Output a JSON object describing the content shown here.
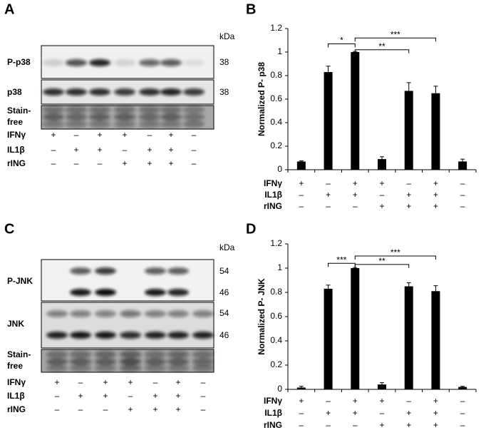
{
  "panels": [
    "A",
    "B",
    "C",
    "D"
  ],
  "conditions": {
    "names": [
      "IFNγ",
      "IL1β",
      "rING"
    ],
    "signs": [
      [
        "+",
        "–",
        "+",
        "+",
        "–",
        "+",
        "–"
      ],
      [
        "–",
        "+",
        "+",
        "–",
        "+",
        "+",
        "–"
      ],
      [
        "–",
        "–",
        "–",
        "+",
        "+",
        "+",
        "–"
      ]
    ]
  },
  "blots": [
    {
      "kda": "kDa",
      "rows": [
        {
          "label": [
            "P-p38"
          ],
          "sizes": [
            "38"
          ]
        },
        {
          "label": [
            "p38"
          ],
          "sizes": [
            "38"
          ]
        },
        {
          "label": [
            "Stain-",
            "free"
          ],
          "sizes": []
        }
      ]
    },
    {
      "kda": "kDa",
      "rows": [
        {
          "label": [
            "P-JNK"
          ],
          "sizes": [
            "54",
            "46"
          ]
        },
        {
          "label": [
            "JNK"
          ],
          "sizes": [
            "54",
            "46"
          ]
        },
        {
          "label": [
            "Stain-",
            "free"
          ],
          "sizes": []
        }
      ]
    }
  ],
  "chart_data": [
    {
      "type": "bar",
      "y_label": "Normalized P- p38",
      "values": [
        0.07,
        0.83,
        1.0,
        0.09,
        0.67,
        0.65,
        0.07
      ],
      "errors": [
        0.005,
        0.05,
        0.005,
        0.02,
        0.07,
        0.06,
        0.02
      ],
      "color": "#000000",
      "ylim": [
        0,
        1.2
      ],
      "yticks": [
        0,
        0.2,
        0.4,
        0.6,
        0.8,
        1,
        1.2
      ],
      "annotations": [
        {
          "text": "*",
          "from": 1,
          "to": 2,
          "y": 1.07
        },
        {
          "text": "**",
          "from": 2,
          "to": 4,
          "y": 1.02
        },
        {
          "text": "***",
          "from": 2,
          "to": 5,
          "y": 1.12
        }
      ]
    },
    {
      "type": "bar",
      "y_label": "Normalized P- JNK",
      "values": [
        0.015,
        0.83,
        1.0,
        0.04,
        0.85,
        0.81,
        0.02
      ],
      "errors": [
        0.01,
        0.03,
        0.005,
        0.015,
        0.03,
        0.045,
        0.005
      ],
      "color": "#000000",
      "ylim": [
        0,
        1.2
      ],
      "yticks": [
        0,
        0.2,
        0.4,
        0.6,
        0.8,
        1,
        1.2
      ],
      "annotations": [
        {
          "text": "***",
          "from": 1,
          "to": 2,
          "y": 1.04
        },
        {
          "text": "**",
          "from": 2,
          "to": 4,
          "y": 1.03
        },
        {
          "text": "***",
          "from": 2,
          "to": 5,
          "y": 1.1
        }
      ]
    }
  ]
}
